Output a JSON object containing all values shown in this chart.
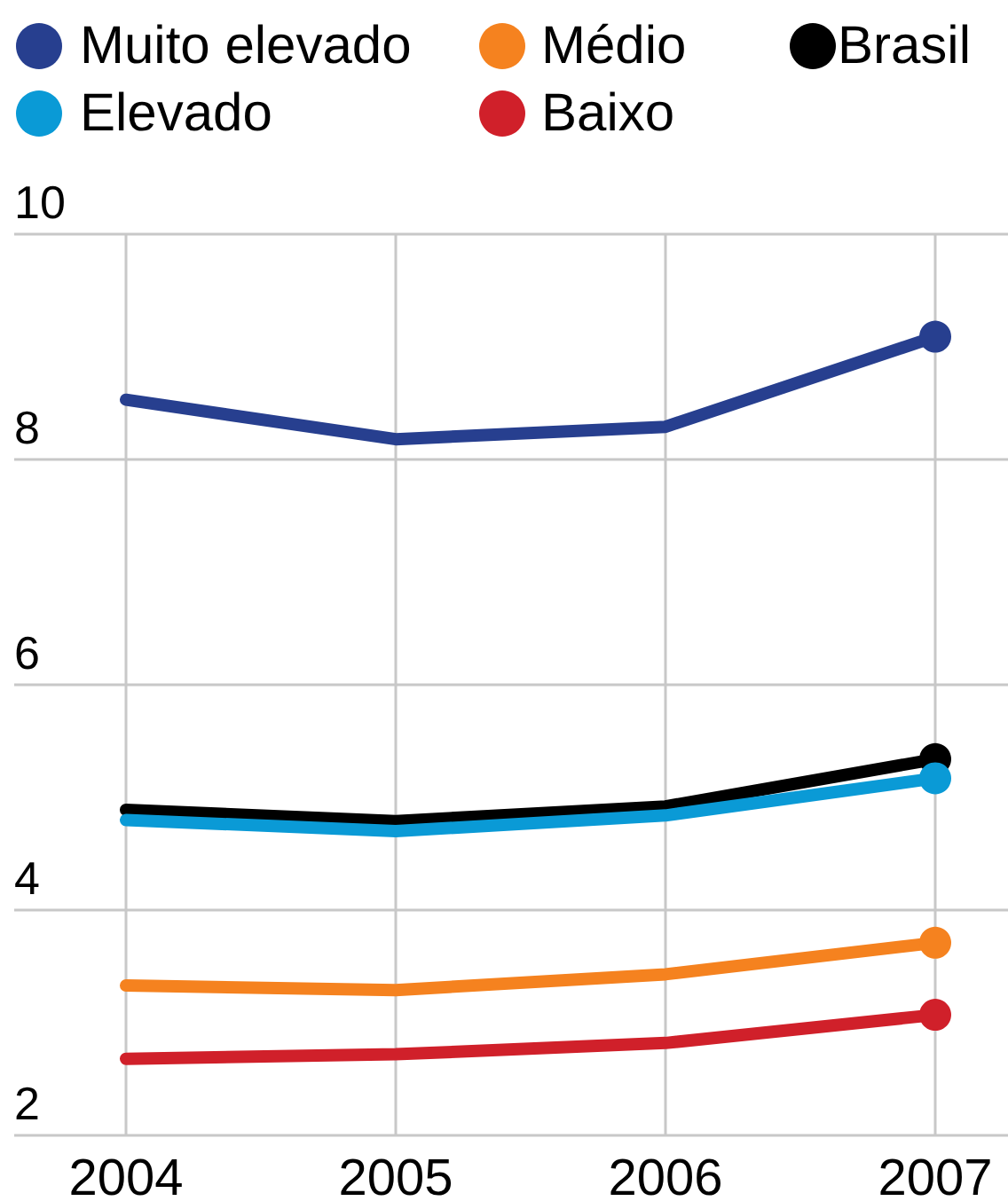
{
  "chart_data": {
    "type": "line",
    "categories": [
      "2004",
      "2005",
      "2006",
      "2007"
    ],
    "series": [
      {
        "name": "Muito elevado",
        "color": "#273f8f",
        "values": [
          8.53,
          8.18,
          8.29,
          9.09
        ]
      },
      {
        "name": "Elevado",
        "color": "#0a9ad6",
        "values": [
          4.8,
          4.7,
          4.84,
          5.17
        ]
      },
      {
        "name": "Médio",
        "color": "#f5821f",
        "values": [
          3.33,
          3.29,
          3.43,
          3.71
        ]
      },
      {
        "name": "Baixo",
        "color": "#d0202a",
        "values": [
          2.68,
          2.72,
          2.82,
          3.07
        ]
      },
      {
        "name": "Brasil",
        "color": "#000000",
        "values": [
          4.89,
          4.79,
          4.92,
          5.34
        ]
      },
      {
        "type": "scatter",
        "marker": "circle",
        "color": "#273f8f",
        "values": [
          null,
          null,
          null,
          9.09
        ]
      },
      {
        "type": "scatter",
        "marker": "circle",
        "color": "#0a9ad6",
        "values": [
          null,
          null,
          null,
          5.17
        ]
      },
      {
        "type": "scatter",
        "marker": "circle",
        "color": "#f5821f",
        "values": [
          null,
          null,
          null,
          3.71
        ]
      },
      {
        "type": "scatter",
        "marker": "circle",
        "color": "#d0202a",
        "values": [
          null,
          null,
          null,
          3.07
        ]
      },
      {
        "type": "scatter",
        "marker": "circle",
        "color": "#000000",
        "values": [
          null,
          null,
          null,
          5.34
        ]
      }
    ],
    "ylim": [
      2,
      10
    ],
    "yticks": [
      2,
      4,
      6,
      8,
      10
    ],
    "grid": true,
    "legend": "top",
    "line_style": "solid"
  }
}
